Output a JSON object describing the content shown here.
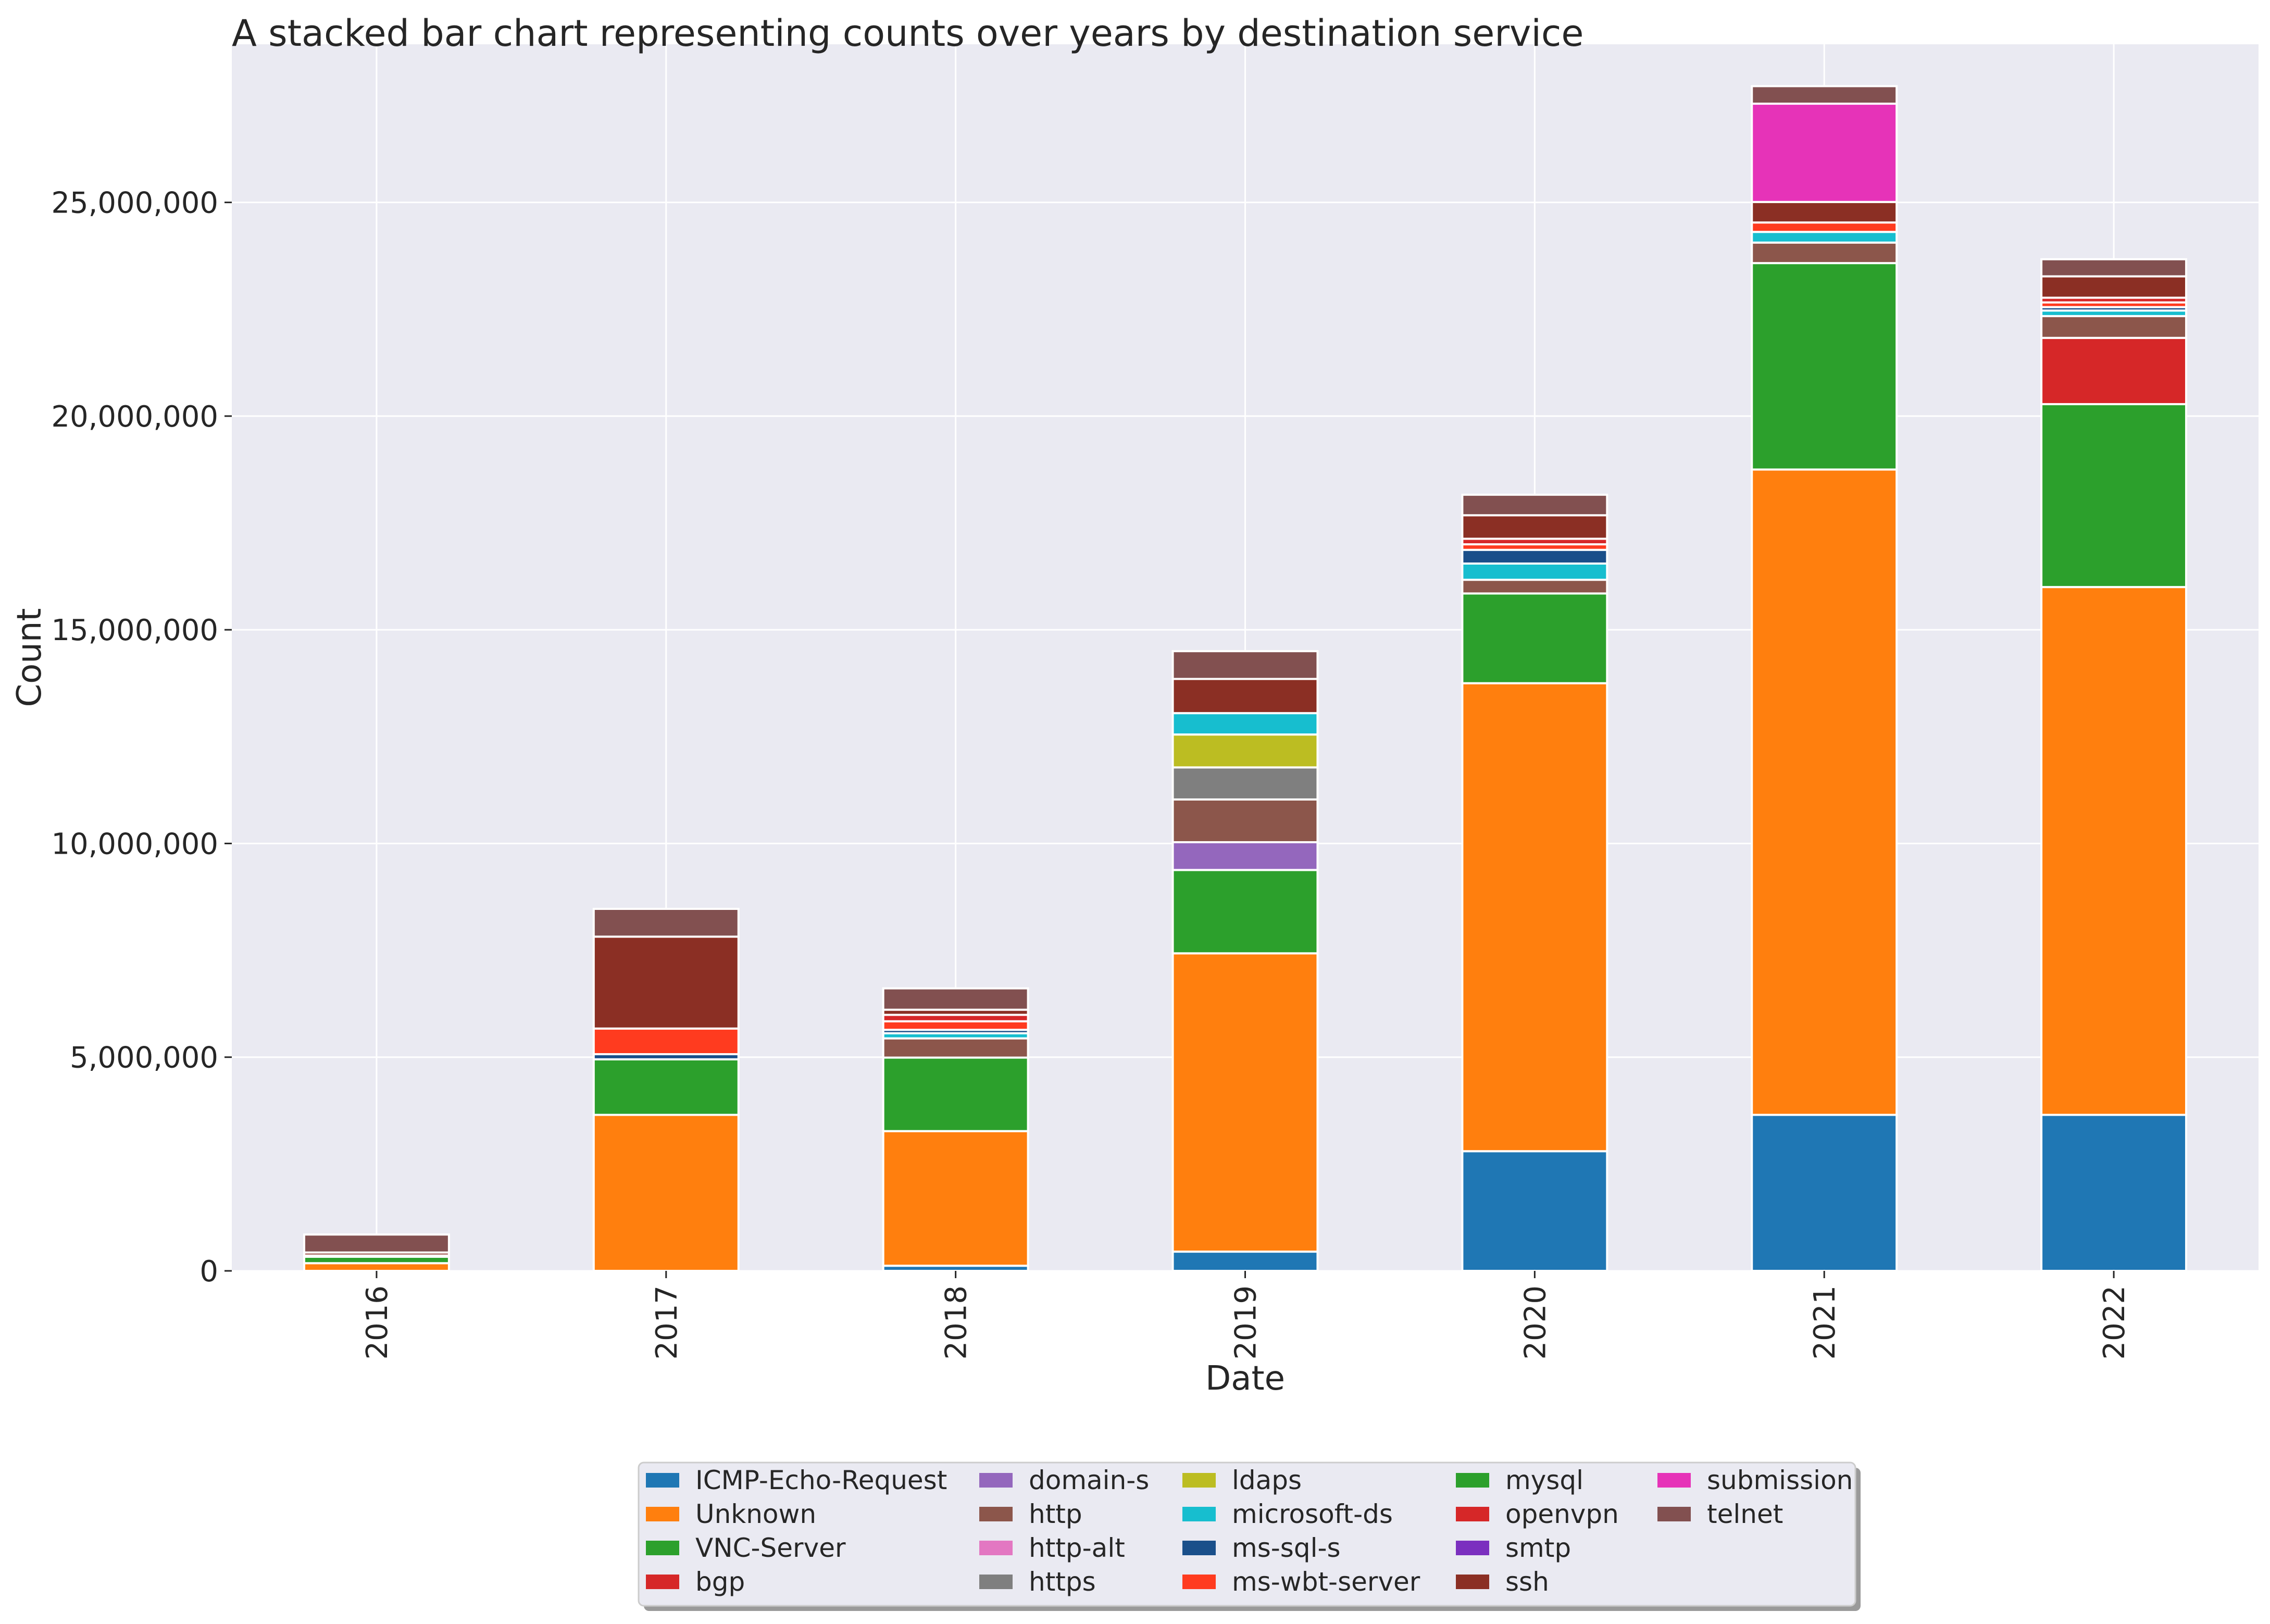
{
  "chart_data": {
    "type": "bar",
    "stacked": true,
    "title": "A stacked bar chart representing counts over years by destination service",
    "xlabel": "Date",
    "ylabel": "Count",
    "ylim": [
      0,
      28700000
    ],
    "yticks": [
      0,
      5000000,
      10000000,
      15000000,
      20000000,
      25000000
    ],
    "ytick_labels": [
      "0",
      "5,000,000",
      "10,000,000",
      "15,000,000",
      "20,000,000",
      "25,000,000"
    ],
    "grid": true,
    "legend_position": "bottom-center",
    "categories": [
      "2016",
      "2017",
      "2018",
      "2019",
      "2020",
      "2021",
      "2022"
    ],
    "series": [
      {
        "name": "ICMP-Echo-Request",
        "color": "#1f77b4",
        "values": [
          0,
          0,
          120000,
          450000,
          2800000,
          3650000,
          3650000
        ]
      },
      {
        "name": "Unknown",
        "color": "#ff7f0e",
        "values": [
          180000,
          3650000,
          3150000,
          6980000,
          10950000,
          15100000,
          12350000
        ]
      },
      {
        "name": "VNC-Server",
        "color": "#2ca02c",
        "values": [
          150000,
          1300000,
          1720000,
          1950000,
          2100000,
          4830000,
          4280000
        ]
      },
      {
        "name": "bgp",
        "color": "#d62728",
        "values": [
          0,
          0,
          0,
          0,
          0,
          0,
          1550000
        ]
      },
      {
        "name": "domain-s",
        "color": "#9467bd",
        "values": [
          0,
          0,
          0,
          650000,
          0,
          0,
          0
        ]
      },
      {
        "name": "http",
        "color": "#8c564b",
        "values": [
          0,
          0,
          450000,
          1000000,
          320000,
          480000,
          510000
        ]
      },
      {
        "name": "http-alt",
        "color": "#e377c2",
        "values": [
          0,
          0,
          0,
          0,
          0,
          0,
          0
        ]
      },
      {
        "name": "https",
        "color": "#7f7f7f",
        "values": [
          0,
          0,
          0,
          750000,
          0,
          0,
          0
        ]
      },
      {
        "name": "ldaps",
        "color": "#bcbd22",
        "values": [
          0,
          0,
          0,
          770000,
          0,
          0,
          0
        ]
      },
      {
        "name": "microsoft-ds",
        "color": "#17becf",
        "values": [
          0,
          0,
          120000,
          500000,
          380000,
          250000,
          130000
        ]
      },
      {
        "name": "ms-sql-s",
        "color": "#1a4f8a",
        "values": [
          0,
          120000,
          80000,
          0,
          320000,
          0,
          80000
        ]
      },
      {
        "name": "ms-wbt-server",
        "color": "#ff3b1f",
        "values": [
          30000,
          600000,
          200000,
          0,
          130000,
          220000,
          110000
        ]
      },
      {
        "name": "mysql",
        "color": "#2ca02c",
        "values": [
          0,
          0,
          0,
          0,
          0,
          0,
          0
        ]
      },
      {
        "name": "openvpn",
        "color": "#d62728",
        "values": [
          0,
          0,
          150000,
          0,
          130000,
          0,
          110000
        ]
      },
      {
        "name": "smtp",
        "color": "#7b2fbf",
        "values": [
          0,
          0,
          0,
          0,
          0,
          0,
          0
        ]
      },
      {
        "name": "ssh",
        "color": "#8b2f24",
        "values": [
          70000,
          2150000,
          120000,
          800000,
          550000,
          480000,
          500000
        ]
      },
      {
        "name": "submission",
        "color": "#e633b8",
        "values": [
          0,
          0,
          0,
          0,
          0,
          2300000,
          0
        ]
      },
      {
        "name": "telnet",
        "color": "#825050",
        "values": [
          420000,
          650000,
          500000,
          650000,
          480000,
          410000,
          400000
        ]
      }
    ]
  }
}
